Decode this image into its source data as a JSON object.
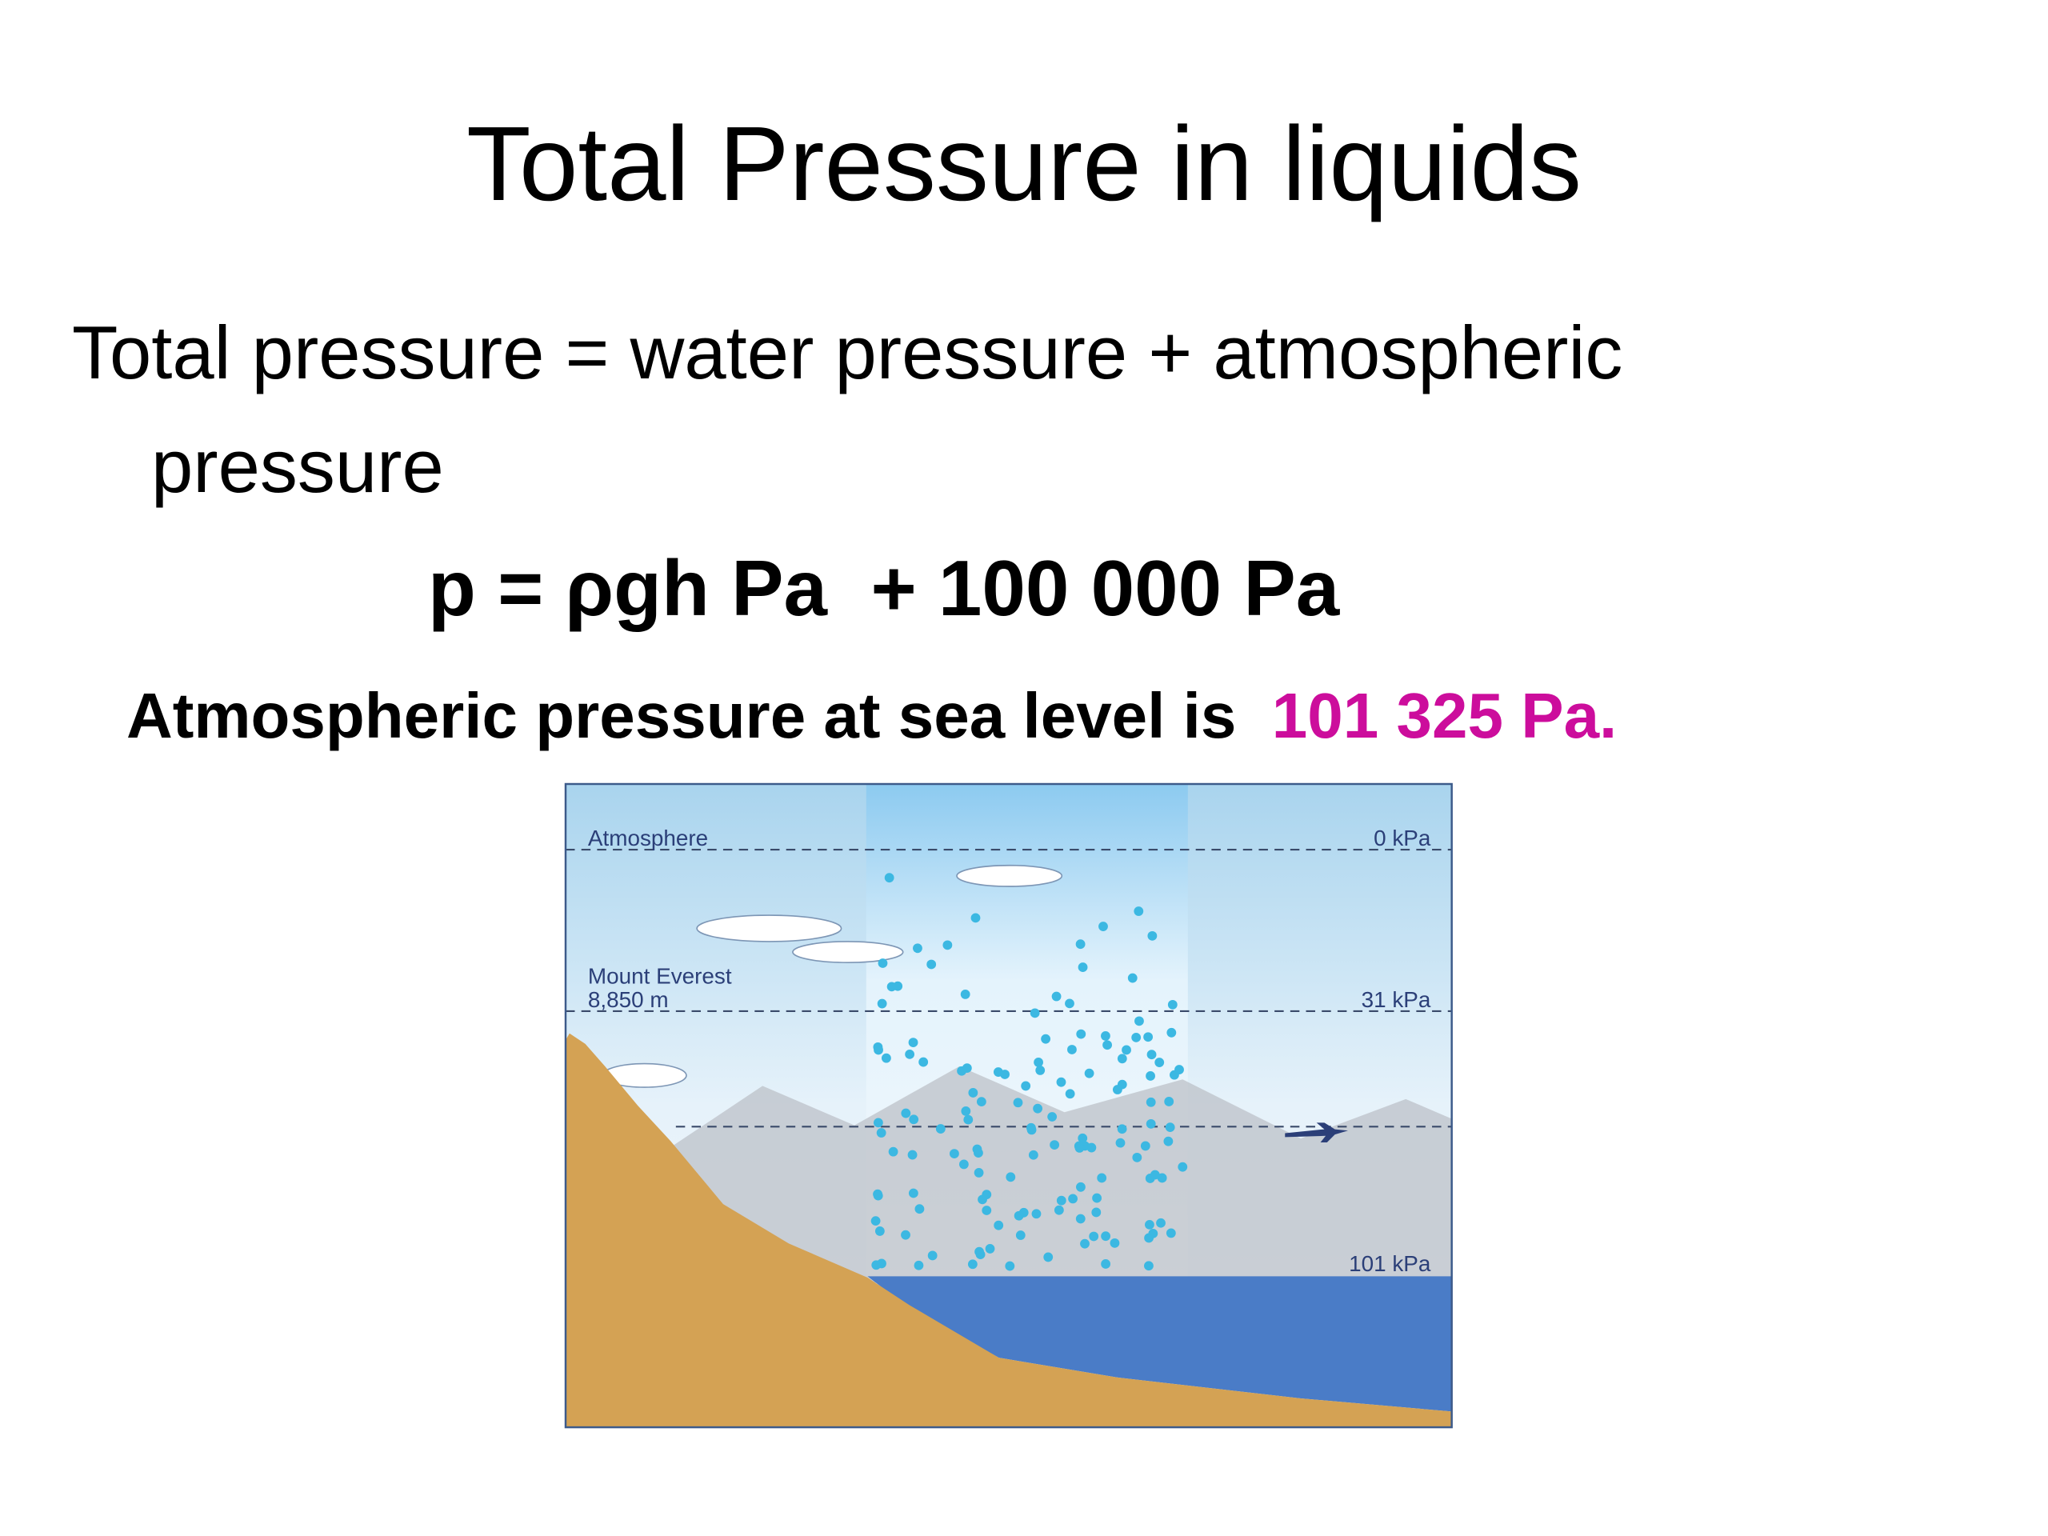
{
  "slide": {
    "title": "Total Pressure in liquids",
    "body": "Total pressure = water pressure + atmospheric pressure",
    "formula": "p = ρgh Pa  + 100 000 Pa",
    "note": {
      "text": "Atmospheric pressure at sea level is",
      "highlight": "101 325 Pa."
    },
    "diagram": {
      "atmosphere": "Atmosphere",
      "top_pressure": "0 kPa",
      "mountain": "Mount Everest",
      "height": "8,850 m",
      "mountain_pressure": "31 kPa",
      "sea_pressure": "101 kPa"
    }
  }
}
